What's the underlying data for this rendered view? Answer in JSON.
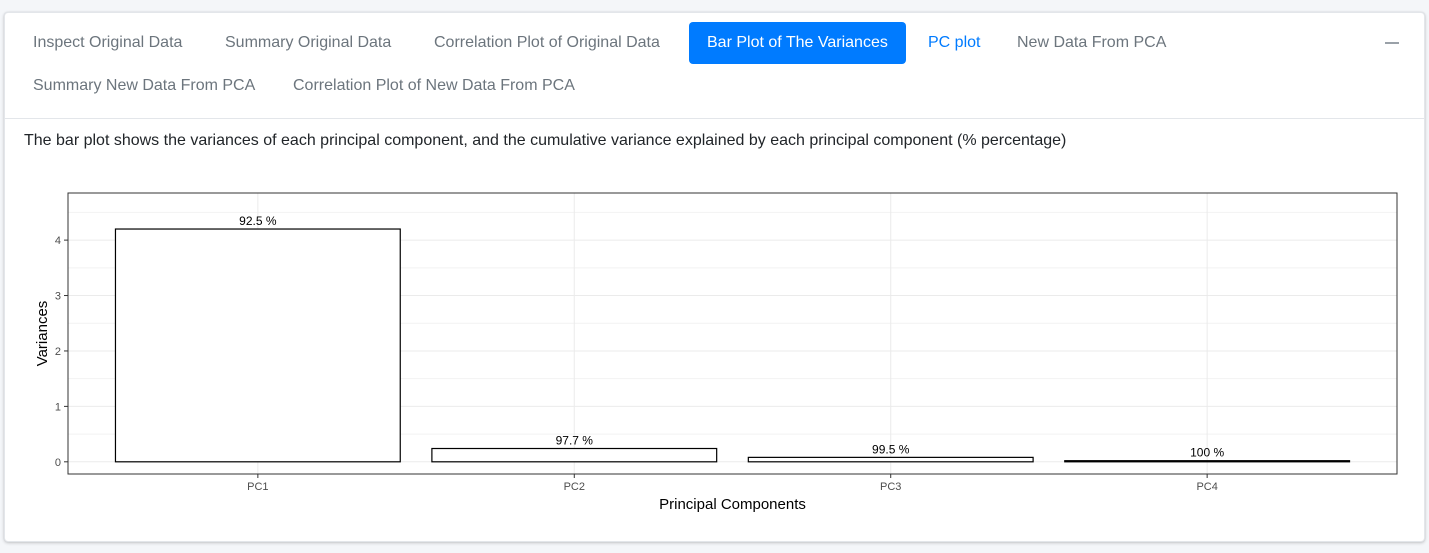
{
  "tabs": [
    {
      "label": "Inspect Original Data",
      "state": "normal"
    },
    {
      "label": "Summary Original Data",
      "state": "normal"
    },
    {
      "label": "Correlation Plot of Original Data",
      "state": "normal"
    },
    {
      "label": "Bar Plot of The Variances",
      "state": "active"
    },
    {
      "label": "PC plot",
      "state": "link"
    },
    {
      "label": "New Data From PCA",
      "state": "normal"
    },
    {
      "label": "Summary New Data From PCA",
      "state": "normal"
    },
    {
      "label": "Correlation Plot of New Data From PCA",
      "state": "normal"
    }
  ],
  "collapse_icon": "minus-icon",
  "description": "The bar plot shows the variances of each principal component, and the cumulative variance explained by each principal component (% percentage)",
  "colors": {
    "accent": "#007bff",
    "tab_text": "#6c757d"
  },
  "chart_data": {
    "type": "bar",
    "categories": [
      "PC1",
      "PC2",
      "PC3",
      "PC4"
    ],
    "values": [
      4.2,
      0.24,
      0.08,
      0.02
    ],
    "labels": [
      "92.5 %",
      "97.7 %",
      "99.5 %",
      "100 %"
    ],
    "xlabel": "Principal Components",
    "ylabel": "Variances",
    "ylim": [
      -0.22,
      4.85
    ],
    "yticks": [
      0,
      1,
      2,
      3,
      4
    ],
    "grid": true,
    "legend": "none"
  }
}
